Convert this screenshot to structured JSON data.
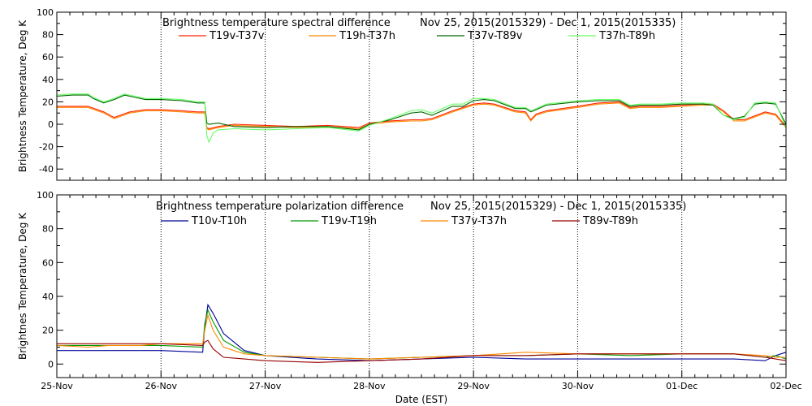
{
  "chart_data": [
    {
      "type": "line",
      "title": "Brightness temperature spectral difference",
      "date_range": "Nov 25, 2015(2015329) - Dec  1, 2015(2015335)",
      "xlabel": "",
      "ylabel": "Brightness Temperature, Deg K",
      "ylim": [
        -50,
        100
      ],
      "yticks": [
        -40,
        -20,
        0,
        20,
        40,
        60,
        80,
        100
      ],
      "xlim": [
        0,
        7
      ],
      "grid": "dotted vertical at day boundaries",
      "legend_position": "top",
      "series": [
        {
          "name": "T19v-T37v",
          "color": "#ff2200",
          "x": [
            0,
            0.3,
            0.45,
            0.55,
            0.7,
            0.85,
            1.0,
            1.2,
            1.35,
            1.42,
            1.44,
            1.46,
            1.55,
            1.7,
            2.0,
            2.3,
            2.6,
            2.9,
            3.0,
            3.2,
            3.4,
            3.5,
            3.6,
            3.8,
            4.0,
            4.1,
            4.2,
            4.4,
            4.5,
            4.55,
            4.6,
            4.7,
            5.0,
            5.2,
            5.4,
            5.5,
            5.6,
            5.8,
            6.0,
            6.2,
            6.3,
            6.4,
            6.5,
            6.6,
            6.8,
            6.9,
            7.0
          ],
          "y": [
            16,
            16,
            11,
            6,
            11,
            13,
            13,
            12,
            11,
            11,
            -3,
            -4,
            -2,
            0,
            -1,
            -2,
            -1,
            -3,
            1,
            3,
            4,
            4,
            5,
            12,
            18,
            19,
            18,
            12,
            11,
            4,
            9,
            12,
            16,
            19,
            20,
            15,
            16,
            16,
            17,
            18,
            18,
            12,
            4,
            4,
            11,
            9,
            -2
          ]
        },
        {
          "name": "T19h-T37h",
          "color": "#ff8800",
          "x": [
            0,
            0.3,
            0.45,
            0.55,
            0.7,
            0.85,
            1.0,
            1.2,
            1.35,
            1.42,
            1.44,
            1.46,
            1.55,
            1.7,
            2.0,
            2.3,
            2.6,
            2.9,
            3.0,
            3.2,
            3.4,
            3.5,
            3.6,
            3.8,
            4.0,
            4.1,
            4.2,
            4.4,
            4.5,
            4.55,
            4.6,
            4.7,
            5.0,
            5.2,
            5.4,
            5.5,
            5.6,
            5.8,
            6.0,
            6.2,
            6.3,
            6.4,
            6.5,
            6.6,
            6.8,
            6.9,
            7.0
          ],
          "y": [
            15,
            15,
            10,
            5,
            10,
            12,
            12,
            11,
            10,
            10,
            -4,
            -5,
            -3,
            -1,
            -2,
            -3,
            -2,
            -4,
            0,
            2,
            3,
            3,
            4,
            11,
            17,
            18,
            17,
            11,
            10,
            3,
            8,
            11,
            15,
            18,
            19,
            14,
            15,
            15,
            16,
            17,
            17,
            11,
            3,
            3,
            10,
            8,
            -3
          ]
        },
        {
          "name": "T37v-T89v",
          "color": "#006600",
          "x": [
            0,
            0.15,
            0.3,
            0.35,
            0.45,
            0.55,
            0.65,
            0.75,
            0.85,
            1.0,
            1.2,
            1.35,
            1.42,
            1.44,
            1.46,
            1.55,
            1.7,
            2.0,
            2.3,
            2.6,
            2.9,
            3.0,
            3.2,
            3.4,
            3.5,
            3.6,
            3.8,
            3.9,
            4.0,
            4.1,
            4.2,
            4.4,
            4.5,
            4.55,
            4.6,
            4.7,
            5.0,
            5.2,
            5.4,
            5.5,
            5.6,
            5.8,
            6.0,
            6.2,
            6.3,
            6.4,
            6.5,
            6.6,
            6.7,
            6.8,
            6.9,
            7.0
          ],
          "y": [
            25,
            26,
            26,
            23,
            19,
            22,
            26,
            24,
            22,
            22,
            21,
            19,
            19,
            1,
            0,
            1,
            -2,
            -3,
            -2,
            -2,
            -5,
            0,
            4,
            10,
            11,
            8,
            16,
            16,
            21,
            22,
            21,
            14,
            14,
            11,
            13,
            17,
            20,
            21,
            21,
            16,
            17,
            17,
            18,
            18,
            17,
            8,
            5,
            7,
            18,
            19,
            18,
            0
          ]
        },
        {
          "name": "T37h-T89h",
          "color": "#66ff66",
          "x": [
            0,
            0.15,
            0.3,
            0.35,
            0.45,
            0.55,
            0.65,
            0.75,
            0.85,
            1.0,
            1.2,
            1.35,
            1.42,
            1.44,
            1.46,
            1.5,
            1.55,
            1.7,
            2.0,
            2.3,
            2.6,
            2.9,
            3.0,
            3.2,
            3.4,
            3.5,
            3.6,
            3.8,
            3.9,
            4.0,
            4.1,
            4.2,
            4.4,
            4.5,
            4.55,
            4.6,
            4.7,
            5.0,
            5.2,
            5.4,
            5.5,
            5.6,
            5.8,
            6.0,
            6.2,
            6.3,
            6.4,
            6.5,
            6.6,
            6.7,
            6.8,
            6.9,
            7.0
          ],
          "y": [
            26,
            27,
            27,
            24,
            20,
            23,
            27,
            25,
            23,
            23,
            22,
            20,
            20,
            -10,
            -16,
            -8,
            -5,
            -4,
            -5,
            -4,
            -3,
            -6,
            -1,
            5,
            12,
            13,
            10,
            18,
            18,
            23,
            23,
            22,
            15,
            15,
            12,
            14,
            18,
            21,
            22,
            22,
            17,
            18,
            18,
            19,
            19,
            18,
            8,
            4,
            6,
            19,
            20,
            19,
            -3
          ]
        }
      ]
    },
    {
      "type": "line",
      "title": "Brightness temperature polarization difference",
      "date_range": "Nov 25, 2015(2015329) - Dec  1, 2015(2015335)",
      "xlabel": "Date (EST)",
      "ylabel": "Brightnes Temperature, Deg K",
      "ylim": [
        -8,
        100
      ],
      "yticks": [
        0,
        20,
        40,
        60,
        80,
        100
      ],
      "xlim": [
        0,
        7
      ],
      "xticks": [
        "25-Nov",
        "26-Nov",
        "27-Nov",
        "28-Nov",
        "29-Nov",
        "30-Nov",
        "01-Dec",
        "02-Dec"
      ],
      "grid": "dotted vertical at day boundaries",
      "legend_position": "top",
      "series": [
        {
          "name": "T10v-T10h",
          "color": "#000099",
          "x": [
            0,
            0.5,
            1.0,
            1.4,
            1.42,
            1.45,
            1.5,
            1.6,
            1.8,
            2.0,
            2.5,
            3.0,
            3.5,
            4.0,
            4.5,
            5.0,
            5.5,
            6.0,
            6.5,
            6.8,
            6.9,
            7.0
          ],
          "y": [
            8,
            8,
            8,
            7,
            22,
            35,
            30,
            18,
            8,
            5,
            3,
            2,
            3,
            4,
            3,
            3,
            3,
            3,
            3,
            2,
            5,
            7
          ]
        },
        {
          "name": "T19v-T19h",
          "color": "#009900",
          "x": [
            0,
            0.5,
            1.0,
            1.4,
            1.42,
            1.45,
            1.5,
            1.6,
            1.8,
            2.0,
            2.5,
            3.0,
            3.5,
            4.0,
            4.5,
            5.0,
            5.5,
            6.0,
            6.5,
            6.8,
            6.9,
            7.0
          ],
          "y": [
            11,
            11,
            11,
            10,
            24,
            32,
            25,
            14,
            7,
            5,
            4,
            3,
            4,
            5,
            5,
            6,
            5,
            6,
            6,
            4,
            5,
            3
          ]
        },
        {
          "name": "T37v-T37h",
          "color": "#ff8800",
          "x": [
            0,
            0.3,
            0.5,
            0.8,
            1.0,
            1.4,
            1.42,
            1.45,
            1.5,
            1.6,
            1.8,
            2.0,
            2.5,
            3.0,
            3.5,
            4.0,
            4.5,
            5.0,
            5.5,
            6.0,
            6.5,
            6.8,
            6.9,
            7.0
          ],
          "y": [
            11,
            10,
            11,
            11,
            12,
            12,
            20,
            29,
            20,
            10,
            6,
            5,
            4,
            3,
            4,
            5,
            7,
            6,
            6,
            6,
            6,
            5,
            4,
            4
          ]
        },
        {
          "name": "T89v-T89h",
          "color": "#990000",
          "x": [
            0,
            0.5,
            1.0,
            1.4,
            1.42,
            1.45,
            1.5,
            1.6,
            1.8,
            2.0,
            2.5,
            3.0,
            3.5,
            4.0,
            4.5,
            5.0,
            5.5,
            6.0,
            6.5,
            6.8,
            6.9,
            7.0
          ],
          "y": [
            12,
            12,
            12,
            11,
            13,
            14,
            9,
            4,
            3,
            2,
            1,
            2,
            3,
            5,
            5,
            6,
            6,
            6,
            6,
            4,
            3,
            2
          ]
        }
      ]
    }
  ]
}
